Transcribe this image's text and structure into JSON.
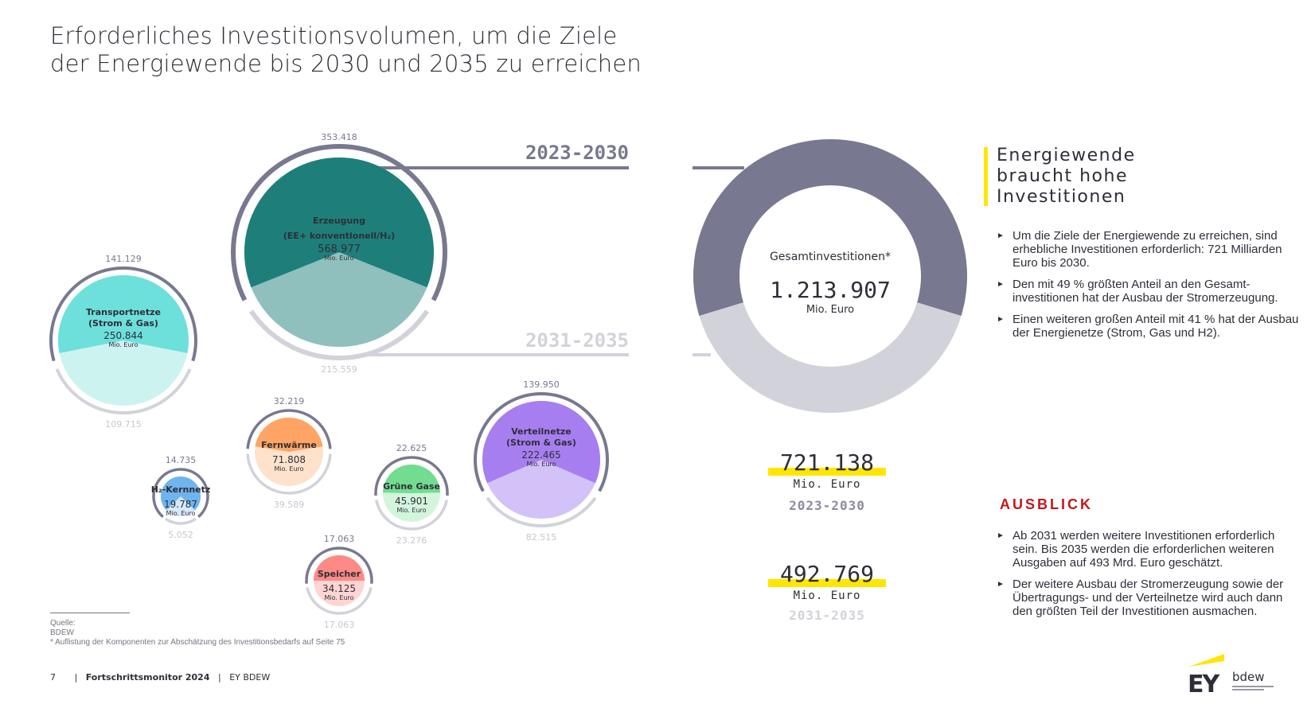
{
  "title": {
    "line1": "Erforderliches Investitionsvolumen, um die Ziele",
    "line2": "der Energiewende bis 2030 und 2035 zu erreichen"
  },
  "periods": {
    "first": "2023-2030",
    "second": "2031-2035"
  },
  "unit": "Mio. Euro",
  "chart_data": [
    {
      "type": "bubble-split",
      "title": "Investitionsvolumen nach Komponenten",
      "unit": "Mio. Euro",
      "series_names": [
        "2023-2030",
        "2031-2035"
      ],
      "items": [
        {
          "name": "Erzeugung",
          "sub": "(EE+ konventionell/H₂)",
          "total": "568.977",
          "v2030": "353.418",
          "v2035": "215.559",
          "color_dark": "#1e7f7a",
          "color_light": "#90c0bd"
        },
        {
          "name": "Transportnetze",
          "sub": "(Strom & Gas)",
          "total": "250.844",
          "v2030": "141.129",
          "v2035": "109.715",
          "color_dark": "#6de0dc",
          "color_light": "#cdf3f1"
        },
        {
          "name": "Verteilnetze",
          "sub": "(Strom & Gas)",
          "total": "222.465",
          "v2030": "139.950",
          "v2035": "82.515",
          "color_dark": "#a77ef0",
          "color_light": "#d3c2f8"
        },
        {
          "name": "Fernwärme",
          "sub": "",
          "total": "71.808",
          "v2030": "32.219",
          "v2035": "39.589",
          "color_dark": "#ffa464",
          "color_light": "#ffe2cc"
        },
        {
          "name": "Grüne Gase",
          "sub": "",
          "total": "45.901",
          "v2030": "22.625",
          "v2035": "23.276",
          "color_dark": "#72dc90",
          "color_light": "#d3f5dc"
        },
        {
          "name": "Speicher",
          "sub": "",
          "total": "34.125",
          "v2030": "17.063",
          "v2035": "17.063",
          "color_dark": "#fd8a86",
          "color_light": "#ffd5d3"
        },
        {
          "name": "H₂-Kernnetz",
          "sub": "",
          "total": "19.787",
          "v2030": "14.735",
          "v2035": "5.052",
          "color_dark": "#6fb4ee",
          "color_light": "#d5e9fa"
        }
      ]
    },
    {
      "type": "pie",
      "title": "Gesamtinvestitionen*",
      "total": "1.213.907",
      "unit": "Mio. Euro",
      "categories": [
        "2023-2030",
        "2031-2035"
      ],
      "values": [
        721138,
        492769
      ],
      "colors": [
        "#787890",
        "#d2d2da"
      ]
    }
  ],
  "donut": {
    "label": "Gesamtinvestitionen*",
    "total": "1.213.907",
    "unit": "Mio. Euro"
  },
  "totals": [
    {
      "value": "721.138",
      "unit": "Mio. Euro",
      "period": "2023-2030"
    },
    {
      "value": "492.769",
      "unit": "Mio. Euro",
      "period": "2031-2035"
    }
  ],
  "right_panel": {
    "headline": [
      "Energiewende",
      "braucht hohe",
      "Investitionen"
    ],
    "bullets": [
      "Um die Ziele der Energiewende zu erreichen, sind erhebliche Investitionen erforderlich: 721 Milliarden Euro bis 2030.",
      "Den mit 49 % größten Anteil an den Gesamt­investitionen hat der Ausbau der Strom­erzeugung.",
      "Einen weiteren großen Anteil mit 41 % hat der Ausbau der Energienetze (Strom, Gas und H2)."
    ],
    "outlook_title": "AUSBLICK",
    "outlook_bullets": [
      "Ab 2031 werden weitere Investitionen erforderlich sein. Bis 2035 werden die erforderlichen weiteren Ausgaben auf 493 Mrd. Euro geschätzt.",
      "Der weitere Ausbau der Stromerzeugung sowie der Übertragungs- und der Verteil­netze wird auch dann den größten Teil der Investitionen ausmachen."
    ]
  },
  "source": {
    "label": "Quelle:",
    "value": "BDEW",
    "note": "* Auflistung der Komponenten zur Abschätzung des Investitionsbedarfs auf Seite 75"
  },
  "footer": {
    "page": "7",
    "publication": "Fortschrittsmonitor 2024",
    "authors": "EY  BDEW"
  },
  "logos": {
    "ey": "EY",
    "bdew": "bdew"
  },
  "colors": {
    "ring_dark": "#787890",
    "ring_light": "#d2d2da",
    "highlight": "#ffe600",
    "accent_red": "#c4161c",
    "text": "#2e2e38"
  }
}
